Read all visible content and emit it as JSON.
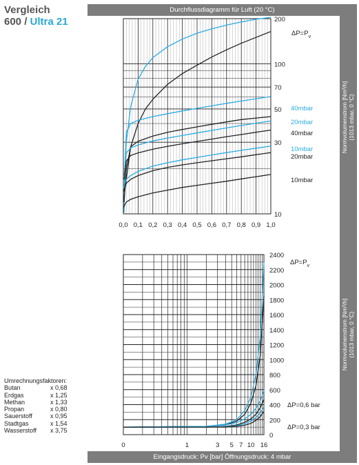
{
  "header": {
    "line1": "Vergleich",
    "line2_prefix": "600 /",
    "line2_accent": "Ultra 21"
  },
  "top_bar_title": "Durchflussdiagramm für Luft (20 °C)",
  "bottom_bar_title": "Eingangsdruck: Pv [bar] Öffnungsdruck: 4 mbar",
  "side_label_top": {
    "line1": "Normvolumenstrom  [Nm³/h]",
    "line2": "(1013 mbar, 0 °C)"
  },
  "side_label_bottom": {
    "line1": "Normvolumenstrom  [Nm³/h]",
    "line2": "(1013 mbar, 0 °C)"
  },
  "factors": {
    "title": "Umrechnungsfaktoren:",
    "rows": [
      {
        "gas": "Butan",
        "factor": "x 0,68"
      },
      {
        "gas": "Erdgas",
        "factor": "x 1,25"
      },
      {
        "gas": "Methan",
        "factor": "x 1,33"
      },
      {
        "gas": "Propan",
        "factor": "x 0,80"
      },
      {
        "gas": "Sauerstoff",
        "factor": "x 0,95"
      },
      {
        "gas": "Stadtgas",
        "factor": "x 1,54"
      },
      {
        "gas": "Wasserstoff",
        "factor": "x 3,75"
      }
    ]
  },
  "colors": {
    "blue": "#29abe2",
    "black": "#222222",
    "bar": "#7d7d7d"
  },
  "chart_data": [
    {
      "type": "line",
      "x_scale": "linear",
      "y_scale": "log",
      "xlim": [
        0,
        1.0
      ],
      "ylim": [
        10,
        200
      ],
      "x_ticks": [
        "0,0",
        "0,1",
        "0,2",
        "0,3",
        "0,4",
        "0,5",
        "0,6",
        "0,7",
        "0,8",
        "0,9",
        "1,0"
      ],
      "y_ticks": [
        10,
        30,
        50,
        70,
        100,
        200
      ],
      "grid": true,
      "annotations": [
        {
          "text": "ΔP=Pv",
          "color": "black"
        },
        {
          "text": "40mbar",
          "color": "blue"
        },
        {
          "text": "20mbar",
          "color": "blue"
        },
        {
          "text": "40mbar",
          "color": "black"
        },
        {
          "text": "10mbar",
          "color": "blue"
        },
        {
          "text": "20mbar",
          "color": "black"
        },
        {
          "text": "10mbar",
          "color": "black"
        }
      ],
      "series": [
        {
          "color": "blue",
          "x": [
            0.005,
            0.01,
            0.02,
            0.05,
            0.1,
            0.15,
            0.2,
            0.3,
            0.4,
            0.5,
            0.6,
            0.7,
            0.8,
            0.9,
            1.0
          ],
          "y": [
            12,
            20,
            30,
            52,
            79,
            96,
            110,
            130,
            146,
            160,
            171,
            181,
            190,
            198,
            204
          ]
        },
        {
          "color": "black",
          "x": [
            0.0,
            0.02,
            0.05,
            0.1,
            0.15,
            0.2,
            0.3,
            0.4,
            0.5,
            0.6,
            0.7,
            0.8,
            0.9,
            1.0
          ],
          "y": [
            12,
            17,
            28,
            40,
            50,
            58,
            73,
            86,
            98,
            111,
            124,
            137,
            150,
            164
          ]
        },
        {
          "color": "blue",
          "x": [
            0.005,
            0.01,
            0.02,
            0.05,
            0.1,
            0.2,
            0.3,
            0.4,
            0.5,
            0.6,
            0.7,
            0.8,
            0.9,
            1.0
          ],
          "y": [
            10.2,
            20,
            35,
            40,
            42,
            44.5,
            46.5,
            48.5,
            50.5,
            52.5,
            54.5,
            56.5,
            58.5,
            60.5
          ]
        },
        {
          "color": "black",
          "x": [
            0.005,
            0.02,
            0.05,
            0.1,
            0.2,
            0.3,
            0.4,
            0.5,
            0.6,
            0.7,
            0.8,
            0.9,
            1.0
          ],
          "y": [
            12,
            20,
            28,
            30.5,
            33,
            35,
            36.5,
            38,
            39.5,
            41,
            42.5,
            43.5,
            44.5
          ]
        },
        {
          "color": "blue",
          "x": [
            0.005,
            0.02,
            0.05,
            0.1,
            0.2,
            0.3,
            0.4,
            0.5,
            0.6,
            0.7,
            0.8,
            0.9,
            1.0
          ],
          "y": [
            18,
            25.5,
            27.5,
            28.8,
            30.6,
            32,
            33.3,
            34.6,
            36,
            37.4,
            38.8,
            40.2,
            41.6
          ]
        },
        {
          "color": "black",
          "x": [
            0.005,
            0.02,
            0.05,
            0.1,
            0.2,
            0.3,
            0.4,
            0.5,
            0.6,
            0.7,
            0.8,
            0.9,
            1.0
          ],
          "y": [
            17,
            22.5,
            24.5,
            25.5,
            27,
            28.2,
            29.3,
            30.4,
            31.5,
            32.7,
            33.8,
            35,
            36.2
          ]
        },
        {
          "color": "blue",
          "x": [
            0.0,
            0.02,
            0.05,
            0.1,
            0.2,
            0.3,
            0.4,
            0.5,
            0.6,
            0.7,
            0.8,
            0.9,
            1.0
          ],
          "y": [
            15,
            17,
            18,
            19.2,
            20.8,
            21.9,
            22.9,
            23.8,
            24.7,
            25.6,
            26.5,
            27.4,
            28.3
          ]
        },
        {
          "color": "black",
          "x": [
            0.0,
            0.02,
            0.05,
            0.1,
            0.2,
            0.3,
            0.4,
            0.5,
            0.6,
            0.7,
            0.8,
            0.9,
            1.0
          ],
          "y": [
            14,
            16,
            17,
            18,
            19.4,
            20.4,
            21.2,
            21.9,
            22.6,
            23.3,
            24,
            24.8,
            25.6
          ]
        },
        {
          "color": "black",
          "x": [
            0.0,
            0.02,
            0.05,
            0.1,
            0.2,
            0.3,
            0.4,
            0.5,
            0.6,
            0.7,
            0.8,
            0.9,
            1.0
          ],
          "y": [
            11,
            12,
            12.5,
            13,
            13.8,
            14.4,
            15,
            15.5,
            16,
            16.5,
            17.1,
            17.7,
            18.3
          ]
        }
      ]
    },
    {
      "type": "line",
      "x_scale": "linear",
      "y_scale": "linear",
      "xlim": [
        0,
        16
      ],
      "ylim": [
        0,
        2400
      ],
      "x_ticks": [
        "0",
        "1",
        "3",
        "5",
        "7",
        "10",
        "16"
      ],
      "y_ticks": [
        0,
        200,
        400,
        600,
        800,
        1000,
        1200,
        1400,
        1600,
        1800,
        2000,
        2200,
        2400
      ],
      "grid": true,
      "annotations": [
        {
          "text": "ΔP=Pv",
          "color": "black"
        },
        {
          "text": "ΔP=0,6 bar",
          "color": "black"
        },
        {
          "text": "ΔP=0,3 bar",
          "color": "black"
        }
      ],
      "series": [
        {
          "color": "blue",
          "x": [
            0,
            2,
            4,
            6,
            8,
            10,
            12,
            14,
            16
          ],
          "y": [
            100,
            110,
            140,
            200,
            320,
            500,
            800,
            1300,
            2300
          ]
        },
        {
          "color": "black",
          "x": [
            0,
            2,
            4,
            6,
            8,
            10,
            12,
            14,
            16
          ],
          "y": [
            100,
            110,
            130,
            180,
            270,
            420,
            650,
            1050,
            1850
          ]
        },
        {
          "color": "blue",
          "x": [
            0,
            2,
            4,
            6,
            8,
            10,
            12,
            14,
            16
          ],
          "y": [
            100,
            110,
            130,
            160,
            210,
            270,
            350,
            450,
            590
          ]
        },
        {
          "color": "black",
          "x": [
            0,
            2,
            4,
            6,
            8,
            10,
            12,
            14,
            16
          ],
          "y": [
            100,
            100,
            110,
            130,
            165,
            210,
            270,
            360,
            470
          ]
        },
        {
          "color": "blue",
          "x": [
            0,
            2,
            4,
            6,
            8,
            10,
            12,
            14,
            16
          ],
          "y": [
            100,
            100,
            105,
            120,
            145,
            180,
            230,
            290,
            370
          ]
        },
        {
          "color": "black",
          "x": [
            0,
            2,
            4,
            6,
            8,
            10,
            12,
            14,
            16
          ],
          "y": [
            100,
            100,
            100,
            110,
            125,
            150,
            190,
            240,
            310
          ]
        }
      ]
    }
  ]
}
